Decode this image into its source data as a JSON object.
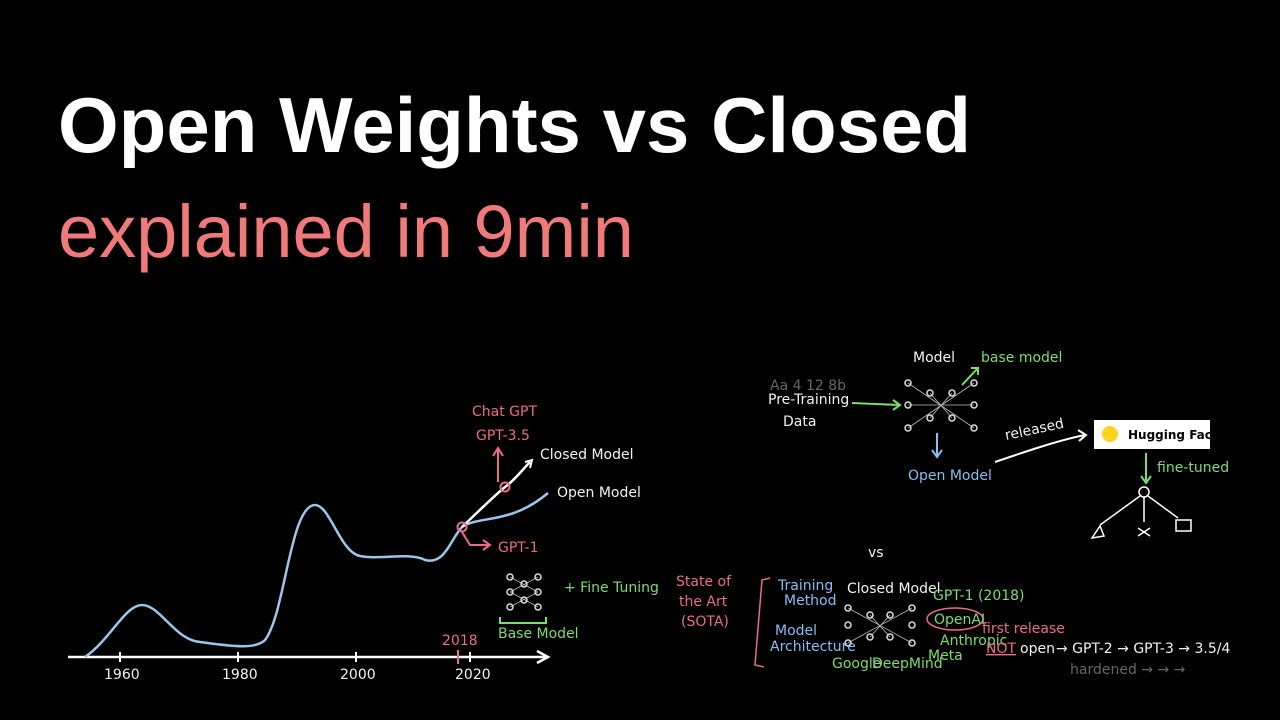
{
  "header": {
    "title": "Open Weights vs Closed",
    "subtitle": "explained in 9min"
  },
  "timeline": {
    "ticks": [
      "1960",
      "1980",
      "2000",
      "2020"
    ],
    "highlight": "2018",
    "chat_gpt": "Chat GPT",
    "gpt35": "GPT-3.5",
    "closed_model": "Closed Model",
    "open_model": "Open Model",
    "gpt1": "GPT-1",
    "fine_tuning": "+ Fine Tuning",
    "sota": [
      "State of",
      "the Art",
      "(SOTA)"
    ],
    "base_model": "Base Model"
  },
  "open_diagram": {
    "model": "Model",
    "base_model": "base model",
    "pretraining": [
      "Pre-Training",
      "Data"
    ],
    "open_model": "Open Model",
    "released": "released",
    "hugging_face": "Hugging Face",
    "fine_tuned": "fine-tuned"
  },
  "vs": "vs",
  "closed_diagram": {
    "training_method": [
      "Training",
      "Method"
    ],
    "closed_model": "Closed Model",
    "gpt1_2018": "GPT-1 (2018)",
    "openai": "OpenAI",
    "anthropic": "Anthropic",
    "meta": "Meta",
    "google": "Google",
    "deepmind": "DeepMind",
    "architecture": [
      "Model",
      "Architecture"
    ],
    "first_release": "first release",
    "not": "NOT",
    "open": "open",
    "sequence": "→ GPT-2 → GPT-3 → 3.5/4",
    "hardened": "hardened → → →"
  }
}
